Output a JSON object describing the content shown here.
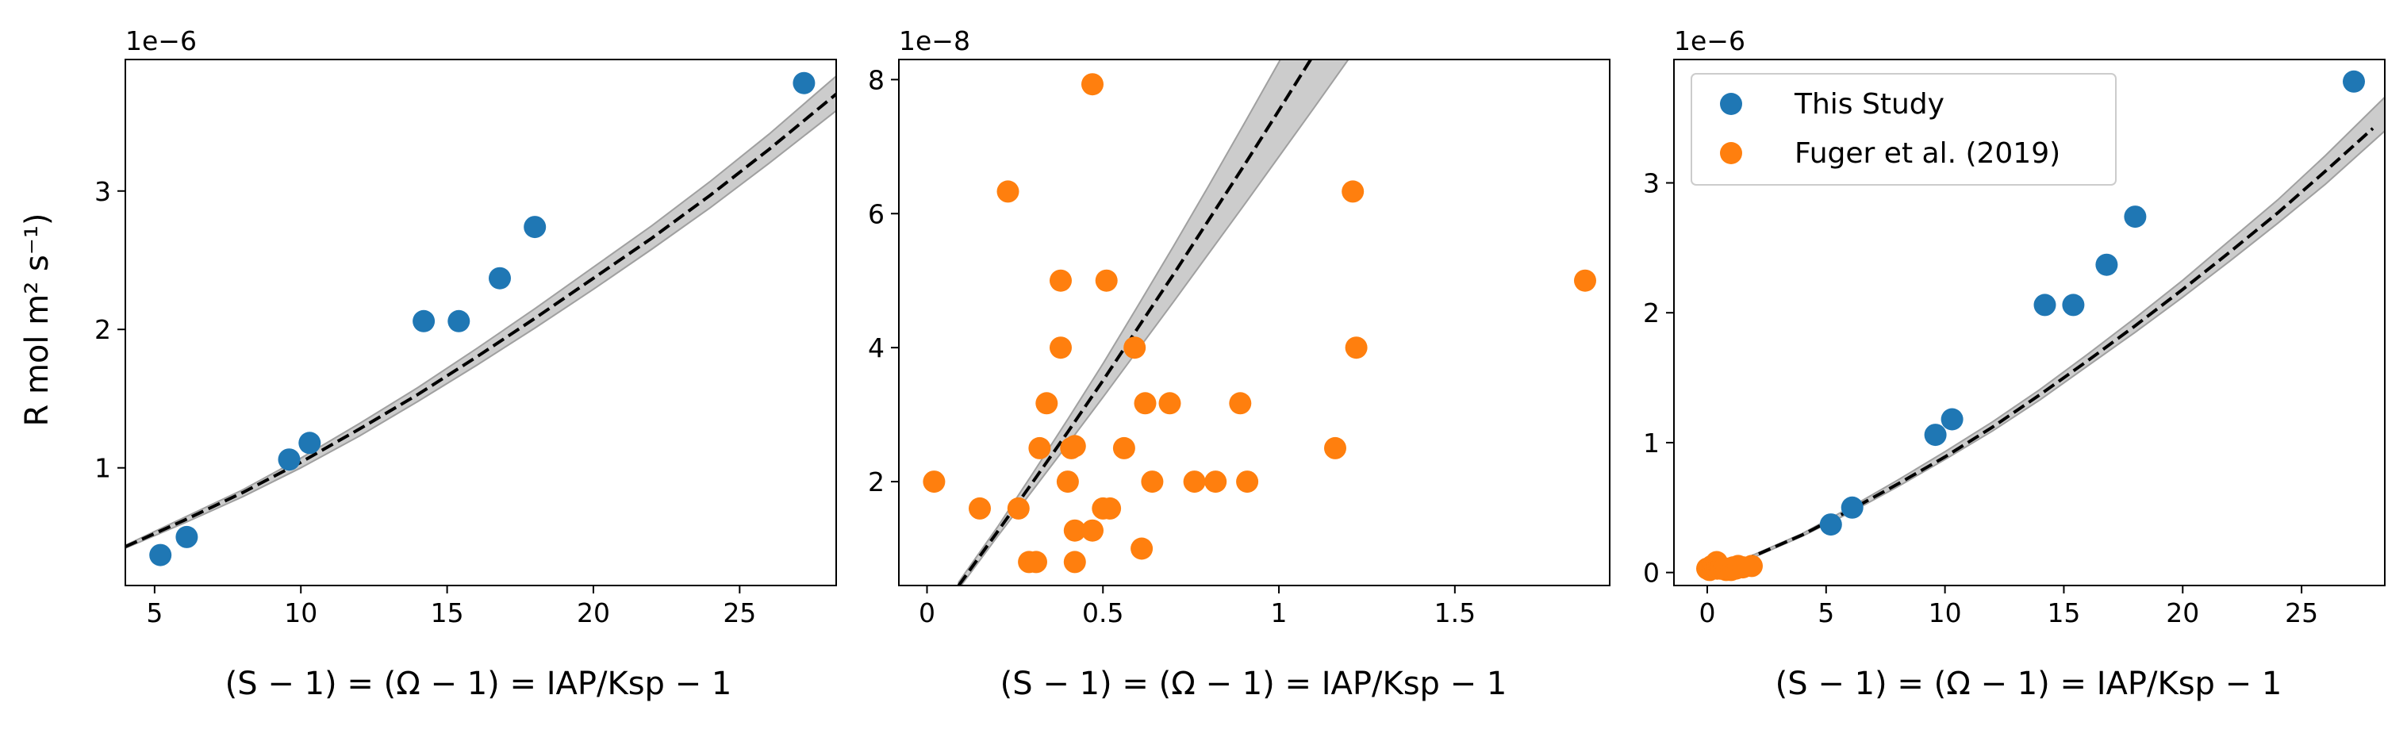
{
  "figure": {
    "ylabel": "R mol m² s⁻¹)",
    "xlabel": "(S − 1) = (Ω − 1) = IAP/Ksp − 1",
    "colors": {
      "this_study": "#1f77b4",
      "fuger": "#ff7f0e",
      "band": "#cccccc",
      "band_edge": "#a0a0a0",
      "fit": "#000000"
    }
  },
  "chart_data": [
    {
      "type": "scatter",
      "scale_label": "1e−6",
      "xlim": [
        4.0,
        28.3
      ],
      "ylim": [
        0.15,
        3.95
      ],
      "xticks": [
        5,
        10,
        15,
        20,
        25
      ],
      "yticks": [
        1,
        2,
        3
      ],
      "series": [
        {
          "color": "#1f77b4",
          "x": [
            5.2,
            6.1,
            9.6,
            10.3,
            14.2,
            15.4,
            16.8,
            18.0,
            27.2
          ],
          "y": [
            0.37,
            0.5,
            1.06,
            1.18,
            2.06,
            2.06,
            2.37,
            2.74,
            3.78
          ]
        }
      ],
      "fit": {
        "x": [
          4.0,
          6,
          8,
          10,
          12,
          14,
          16,
          18,
          20,
          22,
          24,
          26,
          28.3
        ],
        "y": [
          0.43,
          0.62,
          0.82,
          1.04,
          1.28,
          1.53,
          1.8,
          2.08,
          2.37,
          2.66,
          2.97,
          3.3,
          3.7
        ]
      },
      "band": {
        "x": [
          4.0,
          6,
          8,
          10,
          12,
          14,
          16,
          18,
          20,
          22,
          24,
          26,
          28.3
        ],
        "lo": [
          0.42,
          0.6,
          0.79,
          1.0,
          1.23,
          1.48,
          1.74,
          2.01,
          2.29,
          2.58,
          2.88,
          3.2,
          3.58
        ],
        "hi": [
          0.44,
          0.64,
          0.84,
          1.07,
          1.32,
          1.58,
          1.86,
          2.15,
          2.45,
          2.75,
          3.07,
          3.41,
          3.83
        ]
      }
    },
    {
      "type": "scatter",
      "scale_label": "1e−8",
      "xlim": [
        -0.08,
        1.94
      ],
      "ylim": [
        0.45,
        8.3
      ],
      "xticks": [
        0.0,
        0.5,
        1.0,
        1.5
      ],
      "yticks": [
        2,
        4,
        6,
        8
      ],
      "series": [
        {
          "color": "#ff7f0e",
          "x": [
            0.02,
            0.15,
            0.23,
            0.26,
            0.29,
            0.31,
            0.32,
            0.34,
            0.38,
            0.38,
            0.4,
            0.41,
            0.42,
            0.42,
            0.42,
            0.47,
            0.47,
            0.5,
            0.51,
            0.52,
            0.56,
            0.59,
            0.61,
            0.62,
            0.64,
            0.69,
            0.76,
            0.82,
            0.89,
            0.91,
            1.16,
            1.21,
            1.22,
            1.87
          ],
          "y": [
            2.0,
            1.6,
            6.33,
            1.6,
            0.8,
            0.8,
            2.5,
            3.17,
            5.0,
            4.0,
            2.0,
            2.5,
            1.27,
            0.8,
            2.53,
            1.27,
            7.93,
            1.6,
            5.0,
            1.6,
            2.5,
            4.0,
            1.0,
            3.17,
            2.0,
            3.17,
            2.0,
            2.0,
            3.17,
            2.0,
            2.5,
            6.33,
            4.0,
            5.0
          ]
        }
      ],
      "fit": {
        "x": [
          0.09,
          0.2,
          0.3,
          0.4,
          0.5,
          0.6,
          0.7,
          0.8,
          0.9,
          1.0,
          1.1
        ],
        "y": [
          0.45,
          1.25,
          1.99,
          2.74,
          3.51,
          4.3,
          5.09,
          5.9,
          6.71,
          7.54,
          8.38
        ]
      },
      "band": {
        "x": [
          0.09,
          0.2,
          0.3,
          0.4,
          0.5,
          0.6,
          0.7,
          0.8,
          0.9,
          1.0,
          1.1,
          1.2
        ],
        "lo": [
          0.4,
          1.18,
          1.87,
          2.56,
          3.26,
          3.97,
          4.68,
          5.4,
          6.12,
          6.85,
          7.58,
          8.32
        ],
        "hi": [
          0.5,
          1.32,
          2.12,
          2.93,
          3.76,
          4.63,
          5.51,
          6.41,
          7.33,
          8.26,
          9.2,
          10.15
        ]
      }
    },
    {
      "type": "scatter",
      "scale_label": "1e−6",
      "xlim": [
        -1.4,
        28.5
      ],
      "ylim": [
        -0.1,
        3.95
      ],
      "xticks": [
        0,
        5,
        10,
        15,
        20,
        25
      ],
      "yticks": [
        0,
        1,
        2,
        3
      ],
      "legend": {
        "position": "top-left",
        "entries": [
          "This Study",
          "Fuger et al. (2019)"
        ]
      },
      "series": [
        {
          "name": "This Study",
          "color": "#1f77b4",
          "x": [
            5.2,
            6.1,
            9.6,
            10.3,
            14.2,
            15.4,
            16.8,
            18.0,
            27.2
          ],
          "y": [
            0.37,
            0.5,
            1.06,
            1.18,
            2.06,
            2.06,
            2.37,
            2.74,
            3.78
          ]
        },
        {
          "name": "Fuger et al. (2019)",
          "color": "#ff7f0e",
          "x": [
            0.0,
            0.1,
            0.2,
            0.25,
            0.3,
            0.35,
            0.4,
            0.42,
            0.5,
            0.55,
            0.6,
            0.7,
            0.8,
            0.9,
            1.0,
            1.1,
            1.2,
            1.3,
            1.5,
            1.87
          ],
          "y": [
            0.03,
            0.02,
            0.05,
            0.03,
            0.06,
            0.04,
            0.08,
            0.03,
            0.05,
            0.03,
            0.04,
            0.03,
            0.02,
            0.03,
            0.02,
            0.04,
            0.03,
            0.05,
            0.04,
            0.05
          ]
        }
      ],
      "fit": {
        "x": [
          0.0,
          1,
          2,
          4,
          6,
          8,
          10,
          12,
          14,
          16,
          18,
          20,
          22,
          24,
          26,
          28
        ],
        "y": [
          0.0,
          0.06,
          0.13,
          0.29,
          0.48,
          0.68,
          0.89,
          1.12,
          1.37,
          1.63,
          1.9,
          2.18,
          2.47,
          2.77,
          3.09,
          3.42
        ]
      },
      "band": {
        "x": [
          0.0,
          1,
          2,
          4,
          6,
          8,
          10,
          12,
          14,
          16,
          18,
          20,
          22,
          24,
          26,
          28.5
        ],
        "lo": [
          0.0,
          0.06,
          0.12,
          0.28,
          0.46,
          0.66,
          0.87,
          1.09,
          1.33,
          1.59,
          1.85,
          2.12,
          2.4,
          2.69,
          2.99,
          3.4
        ],
        "hi": [
          0.0,
          0.07,
          0.14,
          0.3,
          0.5,
          0.71,
          0.93,
          1.16,
          1.41,
          1.68,
          1.96,
          2.25,
          2.56,
          2.87,
          3.21,
          3.66
        ]
      }
    }
  ]
}
